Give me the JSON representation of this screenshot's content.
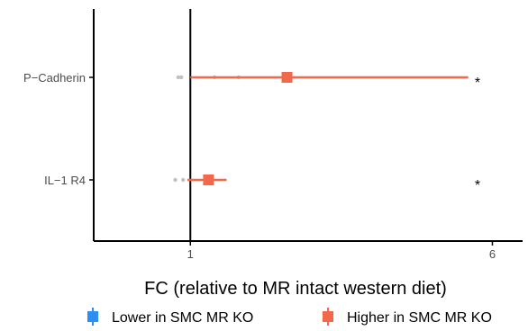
{
  "chart_data": {
    "type": "forest",
    "xlabel": "FC (relative to MR intact western diet)",
    "xlim": [
      -0.6,
      6.5
    ],
    "reference_line": 1,
    "x_ticks": [
      1,
      6
    ],
    "x_tick_labels": [
      "1",
      "6"
    ],
    "grid": false,
    "categories": [
      "P−Cadherin",
      "IL−1 R4"
    ],
    "rows": [
      {
        "label": "P−Cadherin",
        "estimate": 2.6,
        "ci": [
          1,
          5.6
        ],
        "group": "Higher in SMC MR KO",
        "significance": "*",
        "replicates": [
          0.8,
          0.85,
          1.4,
          1.8
        ]
      },
      {
        "label": "IL−1 R4",
        "estimate": 1.3,
        "ci": [
          0.95,
          1.6
        ],
        "group": "Higher in SMC MR KO",
        "significance": "*",
        "replicates": [
          0.75,
          0.88
        ]
      }
    ],
    "legend": {
      "placement": "bottom",
      "items": [
        {
          "label": "Lower in SMC MR KO",
          "color": "#2f8ef2"
        },
        {
          "label": "Higher in SMC MR KO",
          "color": "#f2684a"
        }
      ]
    },
    "colors": {
      "higher": "#f2684a",
      "lower": "#2f8ef2",
      "replicate": "#c0c0c0",
      "axis": "#000000"
    }
  }
}
